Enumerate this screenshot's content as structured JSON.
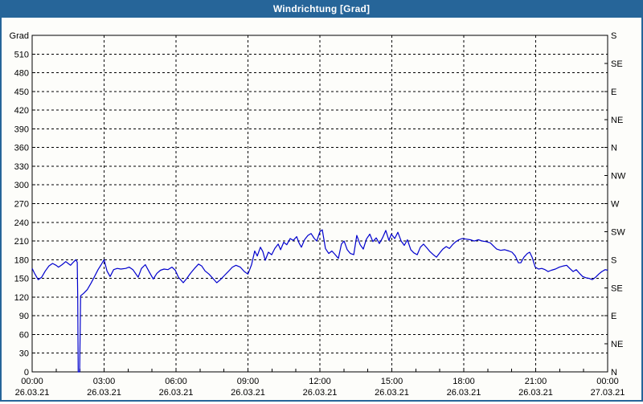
{
  "window": {
    "title": "Windrichtung [Grad]"
  },
  "colors": {
    "titlebar": "#266599",
    "frame": "#266599",
    "line": "#0000cd",
    "axis": "#000000",
    "grid": "#000000",
    "plot_bg": "#fdfdfa",
    "text": "#000000"
  },
  "chart_data": {
    "type": "line",
    "title": "Windrichtung [Grad]",
    "y_left_unit": "Grad",
    "y_left_ticks": [
      0,
      30,
      60,
      90,
      120,
      150,
      180,
      210,
      240,
      270,
      300,
      330,
      360,
      390,
      420,
      450,
      480,
      510
    ],
    "y_right_ticks": [
      {
        "deg": 0,
        "label": "N"
      },
      {
        "deg": 45,
        "label": "NE"
      },
      {
        "deg": 90,
        "label": "E"
      },
      {
        "deg": 135,
        "label": "SE"
      },
      {
        "deg": 180,
        "label": "S"
      },
      {
        "deg": 225,
        "label": "SW"
      },
      {
        "deg": 270,
        "label": "W"
      },
      {
        "deg": 315,
        "label": "NW"
      },
      {
        "deg": 360,
        "label": "N"
      },
      {
        "deg": 405,
        "label": "NE"
      },
      {
        "deg": 450,
        "label": "E"
      },
      {
        "deg": 495,
        "label": "SE"
      },
      {
        "deg": 540,
        "label": "S"
      }
    ],
    "ylim": [
      0,
      540
    ],
    "xlim_hours": [
      0,
      24
    ],
    "x_ticks": [
      {
        "hour": 0,
        "time": "00:00",
        "date": "26.03.21"
      },
      {
        "hour": 3,
        "time": "03:00",
        "date": "26.03.21"
      },
      {
        "hour": 6,
        "time": "06:00",
        "date": "26.03.21"
      },
      {
        "hour": 9,
        "time": "09:00",
        "date": "26.03.21"
      },
      {
        "hour": 12,
        "time": "12:00",
        "date": "26.03.21"
      },
      {
        "hour": 15,
        "time": "15:00",
        "date": "26.03.21"
      },
      {
        "hour": 18,
        "time": "18:00",
        "date": "26.03.21"
      },
      {
        "hour": 21,
        "time": "21:00",
        "date": "26.03.21"
      },
      {
        "hour": 24,
        "time": "00:00",
        "date": "27.03.21"
      }
    ],
    "x_minor_every_hours": 1,
    "grid": "dashed",
    "legend": "none",
    "series": [
      {
        "name": "Windrichtung",
        "color": "#0000cd",
        "points": [
          [
            0,
            166
          ],
          [
            0.1,
            158
          ],
          [
            0.25,
            148
          ],
          [
            0.4,
            152
          ],
          [
            0.55,
            162
          ],
          [
            0.7,
            170
          ],
          [
            0.85,
            174
          ],
          [
            1.0,
            171
          ],
          [
            1.1,
            168
          ],
          [
            1.25,
            172
          ],
          [
            1.4,
            177
          ],
          [
            1.5,
            174
          ],
          [
            1.6,
            171
          ],
          [
            1.72,
            176
          ],
          [
            1.82,
            180
          ],
          [
            1.88,
            176
          ],
          [
            1.9,
            120
          ],
          [
            1.92,
            0
          ],
          [
            1.98,
            0
          ],
          [
            2.02,
            122
          ],
          [
            2.15,
            126
          ],
          [
            2.3,
            132
          ],
          [
            2.45,
            142
          ],
          [
            2.6,
            153
          ],
          [
            2.75,
            164
          ],
          [
            2.88,
            172
          ],
          [
            3.0,
            180
          ],
          [
            3.12,
            162
          ],
          [
            3.25,
            153
          ],
          [
            3.4,
            164
          ],
          [
            3.55,
            166
          ],
          [
            3.7,
            165
          ],
          [
            3.9,
            166
          ],
          [
            4.05,
            168
          ],
          [
            4.2,
            164
          ],
          [
            4.42,
            152
          ],
          [
            4.56,
            166
          ],
          [
            4.72,
            172
          ],
          [
            4.86,
            162
          ],
          [
            5.05,
            149
          ],
          [
            5.2,
            158
          ],
          [
            5.35,
            163
          ],
          [
            5.5,
            165
          ],
          [
            5.66,
            164
          ],
          [
            5.83,
            168
          ],
          [
            5.97,
            163
          ],
          [
            6.1,
            152
          ],
          [
            6.3,
            143
          ],
          [
            6.45,
            150
          ],
          [
            6.6,
            158
          ],
          [
            6.77,
            166
          ],
          [
            6.94,
            173
          ],
          [
            7.07,
            170
          ],
          [
            7.21,
            162
          ],
          [
            7.37,
            157
          ],
          [
            7.54,
            150
          ],
          [
            7.7,
            143
          ],
          [
            7.85,
            148
          ],
          [
            8.0,
            154
          ],
          [
            8.18,
            161
          ],
          [
            8.35,
            168
          ],
          [
            8.5,
            171
          ],
          [
            8.68,
            168
          ],
          [
            8.85,
            161
          ],
          [
            9.0,
            157
          ],
          [
            9.15,
            172
          ],
          [
            9.28,
            194
          ],
          [
            9.39,
            186
          ],
          [
            9.52,
            200
          ],
          [
            9.62,
            193
          ],
          [
            9.72,
            179
          ],
          [
            9.85,
            192
          ],
          [
            9.99,
            188
          ],
          [
            10.12,
            198
          ],
          [
            10.26,
            205
          ],
          [
            10.36,
            196
          ],
          [
            10.49,
            208
          ],
          [
            10.62,
            204
          ],
          [
            10.76,
            214
          ],
          [
            10.89,
            211
          ],
          [
            11.03,
            217
          ],
          [
            11.13,
            207
          ],
          [
            11.23,
            200
          ],
          [
            11.36,
            212
          ],
          [
            11.5,
            219
          ],
          [
            11.63,
            222
          ],
          [
            11.77,
            214
          ],
          [
            11.87,
            210
          ],
          [
            12.0,
            225
          ],
          [
            12.1,
            228
          ],
          [
            12.23,
            198
          ],
          [
            12.37,
            190
          ],
          [
            12.5,
            194
          ],
          [
            12.64,
            188
          ],
          [
            12.77,
            182
          ],
          [
            12.9,
            205
          ],
          [
            13.01,
            210
          ],
          [
            13.14,
            196
          ],
          [
            13.27,
            190
          ],
          [
            13.41,
            188
          ],
          [
            13.54,
            219
          ],
          [
            13.68,
            204
          ],
          [
            13.81,
            197
          ],
          [
            13.94,
            213
          ],
          [
            14.08,
            221
          ],
          [
            14.21,
            209
          ],
          [
            14.35,
            215
          ],
          [
            14.48,
            206
          ],
          [
            14.61,
            215
          ],
          [
            14.75,
            227
          ],
          [
            14.88,
            211
          ],
          [
            14.98,
            221
          ],
          [
            15.12,
            214
          ],
          [
            15.25,
            224
          ],
          [
            15.39,
            210
          ],
          [
            15.52,
            203
          ],
          [
            15.65,
            212
          ],
          [
            15.79,
            196
          ],
          [
            15.92,
            191
          ],
          [
            16.06,
            188
          ],
          [
            16.19,
            200
          ],
          [
            16.32,
            205
          ],
          [
            16.46,
            199
          ],
          [
            16.59,
            193
          ],
          [
            16.73,
            188
          ],
          [
            16.86,
            184
          ],
          [
            17.0,
            191
          ],
          [
            17.13,
            197
          ],
          [
            17.27,
            201
          ],
          [
            17.4,
            198
          ],
          [
            17.53,
            204
          ],
          [
            17.67,
            209
          ],
          [
            17.8,
            212
          ],
          [
            17.93,
            214
          ],
          [
            18.1,
            213
          ],
          [
            18.27,
            212
          ],
          [
            18.44,
            210
          ],
          [
            18.61,
            212
          ],
          [
            18.77,
            210
          ],
          [
            18.94,
            209
          ],
          [
            19.11,
            207
          ],
          [
            19.24,
            202
          ],
          [
            19.37,
            197
          ],
          [
            19.54,
            195
          ],
          [
            19.71,
            196
          ],
          [
            19.88,
            194
          ],
          [
            20.01,
            192
          ],
          [
            20.15,
            186
          ],
          [
            20.28,
            175
          ],
          [
            20.38,
            175
          ],
          [
            20.51,
            184
          ],
          [
            20.65,
            190
          ],
          [
            20.75,
            192
          ],
          [
            20.85,
            184
          ],
          [
            20.98,
            168
          ],
          [
            21.12,
            165
          ],
          [
            21.25,
            166
          ],
          [
            21.39,
            164
          ],
          [
            21.52,
            161
          ],
          [
            21.65,
            163
          ],
          [
            21.82,
            165
          ],
          [
            21.99,
            168
          ],
          [
            22.16,
            170
          ],
          [
            22.29,
            171
          ],
          [
            22.42,
            166
          ],
          [
            22.56,
            161
          ],
          [
            22.69,
            164
          ],
          [
            22.83,
            158
          ],
          [
            22.96,
            153
          ],
          [
            23.09,
            151
          ],
          [
            23.23,
            150
          ],
          [
            23.36,
            148
          ],
          [
            23.5,
            152
          ],
          [
            23.63,
            157
          ],
          [
            23.76,
            161
          ],
          [
            23.9,
            164
          ],
          [
            24.0,
            163
          ]
        ]
      }
    ]
  }
}
